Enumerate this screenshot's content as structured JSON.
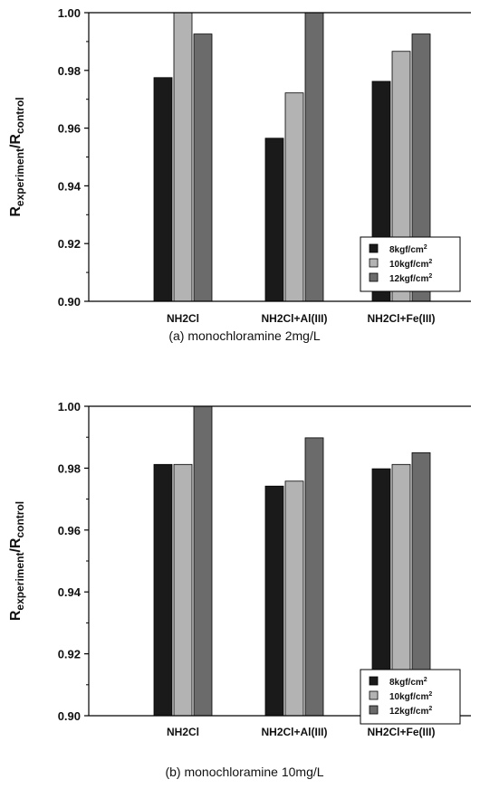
{
  "colors": {
    "series": [
      "#1a1a1a",
      "#b3b3b3",
      "#6b6b6b"
    ],
    "axis": "#000000"
  },
  "chart_data": [
    {
      "type": "bar",
      "caption": "(a) monochloramine 2mg/L",
      "ylabel": {
        "main": "R",
        "sub1": "experiment",
        "slash": "/R",
        "sub2": "control"
      },
      "ylim": [
        0.9,
        1.0
      ],
      "yticks": [
        "0.90",
        "0.92",
        "0.94",
        "0.96",
        "0.98",
        "1.00"
      ],
      "categories": [
        "NH2Cl",
        "NH2Cl+Al(III)",
        "NH2Cl+Fe(III)"
      ],
      "series": [
        {
          "name": "8kgf/cm",
          "sup": "2",
          "values": [
            0.9775,
            0.9565,
            0.9762
          ]
        },
        {
          "name": "10kgf/cm",
          "sup": "2",
          "values": [
            1.0,
            0.9722,
            0.9866
          ]
        },
        {
          "name": "12kgf/cm",
          "sup": "2",
          "values": [
            0.9926,
            1.0,
            0.9926
          ]
        }
      ],
      "legend_position": "bottom-right",
      "grid": false
    },
    {
      "type": "bar",
      "caption": "(b) monochloramine 10mg/L",
      "ylabel": {
        "main": "R",
        "sub1": "experiment",
        "slash": "/R",
        "sub2": "control"
      },
      "ylim": [
        0.9,
        1.0
      ],
      "yticks": [
        "0.90",
        "0.92",
        "0.94",
        "0.96",
        "0.98",
        "1.00"
      ],
      "categories": [
        "NH2Cl",
        "NH2Cl+Al(III)",
        "NH2Cl+Fe(III)"
      ],
      "series": [
        {
          "name": "8kgf/cm",
          "sup": "2",
          "values": [
            0.9812,
            0.9742,
            0.9798
          ]
        },
        {
          "name": "10kgf/cm",
          "sup": "2",
          "values": [
            0.9812,
            0.9758,
            0.9812
          ]
        },
        {
          "name": "12kgf/cm",
          "sup": "2",
          "values": [
            1.0,
            0.9898,
            0.985
          ]
        }
      ],
      "legend_position": "bottom-right",
      "grid": false
    }
  ]
}
